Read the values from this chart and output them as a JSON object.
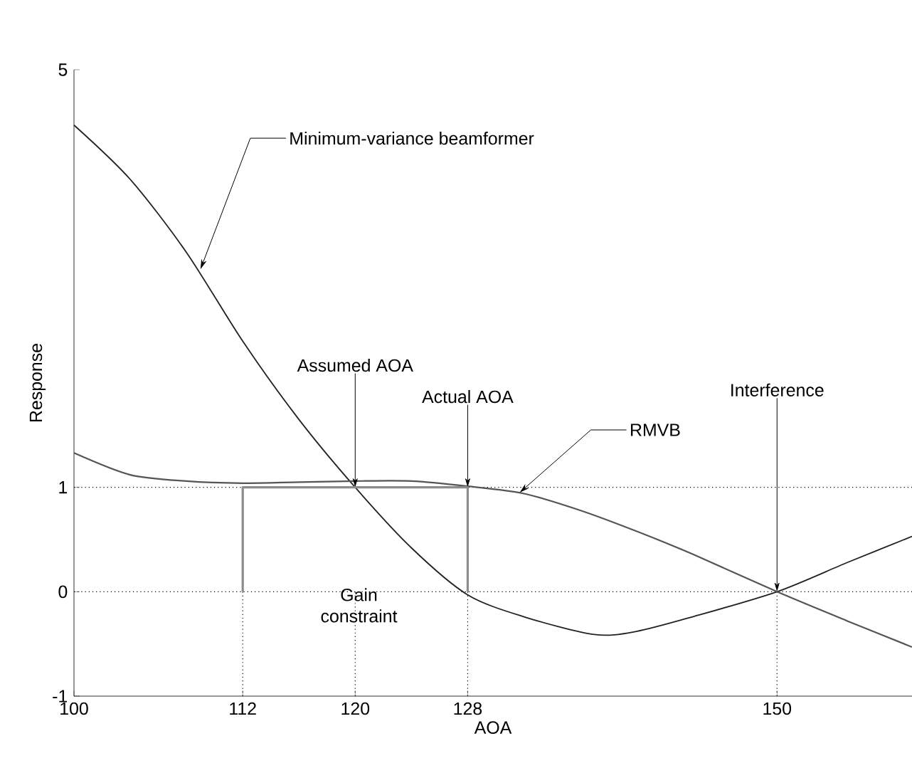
{
  "chart_data": {
    "type": "line",
    "xlabel": "AOA",
    "ylabel": "Response",
    "xlim": [
      100,
      159.6
    ],
    "ylim": [
      -1,
      5
    ],
    "xticks": [
      100,
      112,
      120,
      128,
      150
    ],
    "yticks": [
      -1,
      0,
      1,
      5
    ],
    "grid": false,
    "marker": "none",
    "line_style": "solid",
    "series": [
      {
        "color": "#222222",
        "x": [
          100,
          104,
          108,
          112,
          116,
          120,
          124,
          128,
          132,
          137,
          140,
          144,
          150,
          155,
          159.6
        ],
        "values": [
          4.47,
          3.95,
          3.25,
          2.4,
          1.65,
          1.0,
          0.42,
          -0.03,
          -0.24,
          -0.41,
          -0.38,
          -0.24,
          0,
          0.28,
          0.53
        ]
      },
      {
        "color": "#555555",
        "x": [
          100,
          104,
          108,
          112,
          116,
          120,
          124,
          128,
          132,
          136,
          140,
          144,
          150,
          155,
          159.6
        ],
        "values": [
          1.33,
          1.12,
          1.06,
          1.04,
          1.05,
          1.06,
          1.06,
          1.01,
          0.94,
          0.78,
          0.58,
          0.36,
          0,
          -0.28,
          -0.53
        ]
      },
      {
        "color": "#8c8c8c",
        "x": [
          112,
          112,
          128,
          128
        ],
        "values": [
          0,
          1,
          1,
          0
        ]
      }
    ],
    "ref_lines": [
      {
        "axis": "y",
        "value": 1,
        "line_style": "dotted"
      },
      {
        "axis": "y",
        "value": 0,
        "line_style": "dotted"
      },
      {
        "axis": "x",
        "value": 112,
        "line_style": "dotted"
      },
      {
        "axis": "x",
        "value": 120,
        "line_style": "dotted"
      },
      {
        "axis": "x",
        "value": 128,
        "line_style": "dotted"
      },
      {
        "axis": "x",
        "value": 150,
        "line_style": "dotted"
      }
    ],
    "annotations": [
      {
        "text": "Minimum-variance beamformer",
        "x": 109,
        "y": 3.09
      },
      {
        "text": "Assumed AOA",
        "x": 120,
        "y": 1
      },
      {
        "text": "Actual AOA",
        "x": 128,
        "y": 1
      },
      {
        "text": "RMVB",
        "x": 131.7,
        "y": 0.95
      },
      {
        "text": "Interference",
        "x": 150,
        "y": 0
      },
      "Gain constraint"
    ]
  }
}
